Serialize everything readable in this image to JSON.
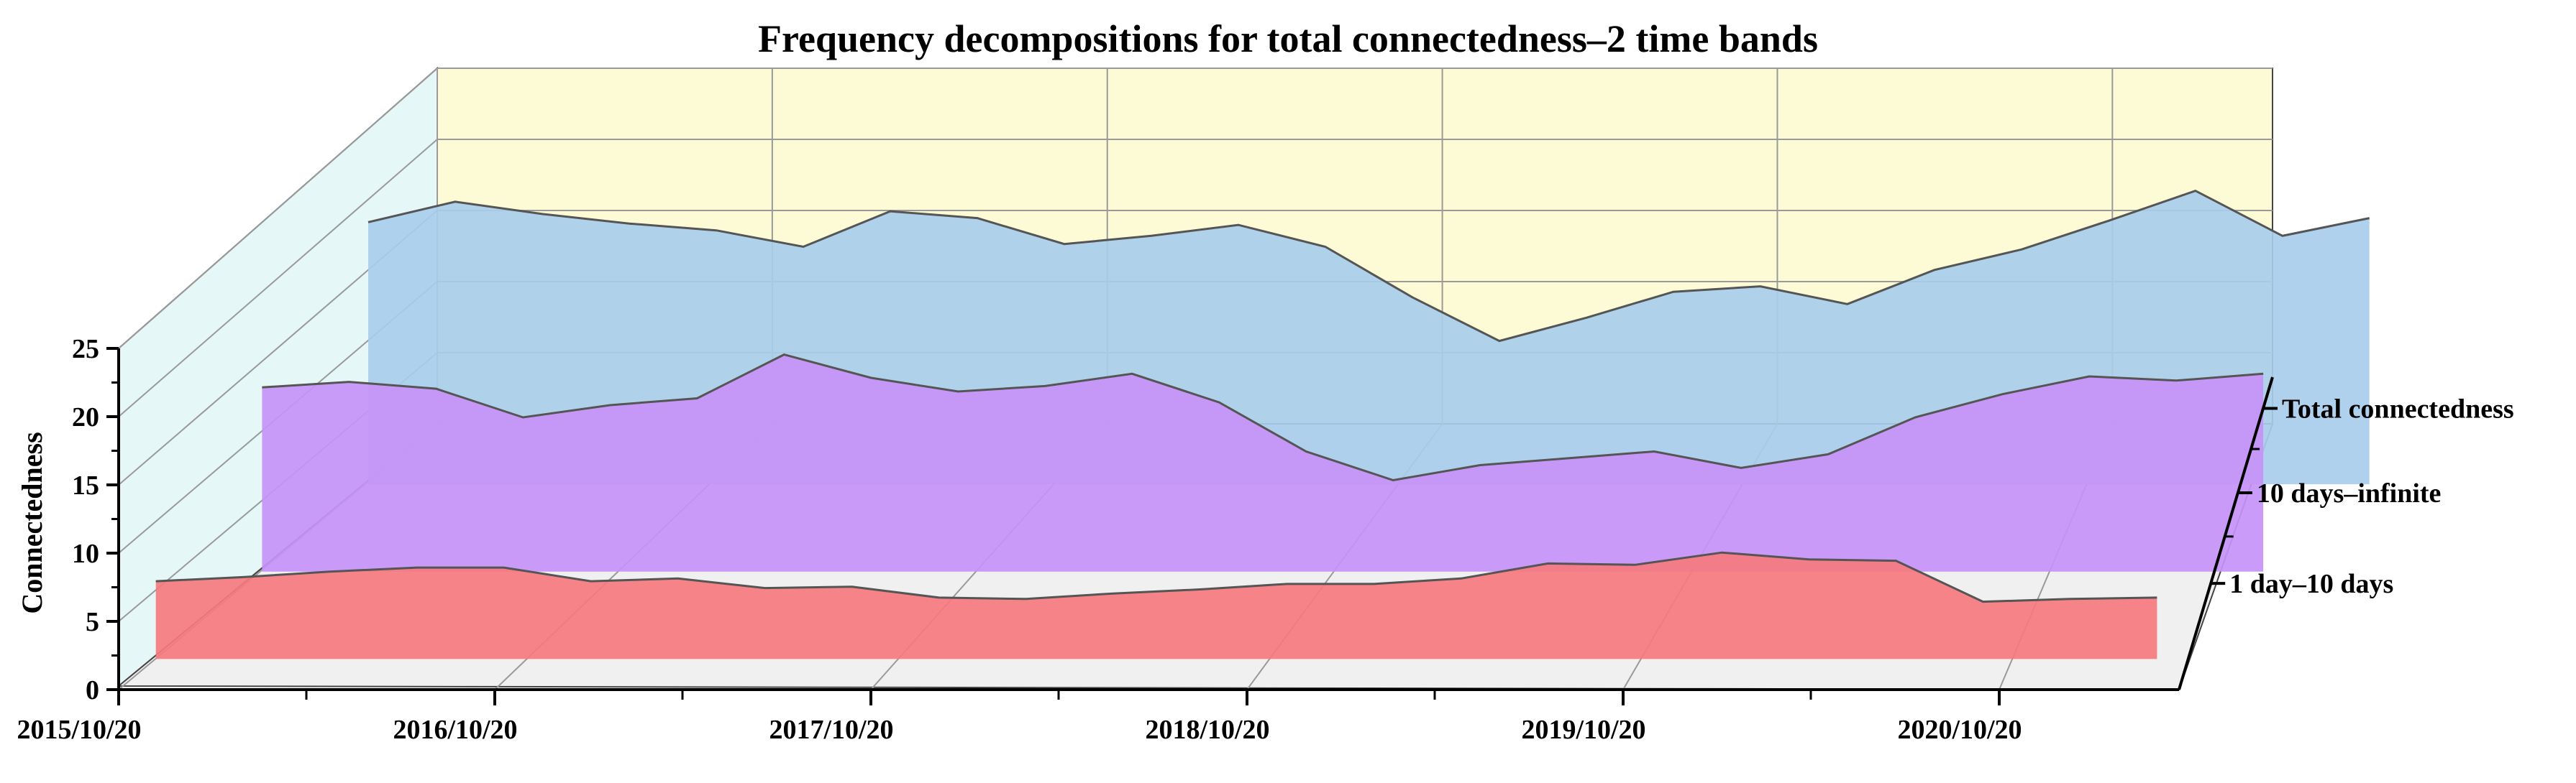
{
  "chart_data": {
    "type": "area",
    "title": "Frequency decompositions for total connectedness–2 time bands",
    "xlabel": "",
    "ylabel": "Connectedness",
    "ylim": [
      0,
      25
    ],
    "yticks": [
      "0",
      "5",
      "10",
      "15",
      "20",
      "25"
    ],
    "x_tick_labels": [
      "2015/10/20",
      "2016/10/20",
      "2017/10/20",
      "2018/10/20",
      "2019/10/20",
      "2020/10/20"
    ],
    "depth_axis_labels": [
      "1 day–10 days",
      "10 days–infinite",
      "Total connectedness"
    ],
    "x": [
      2015.8,
      2016.05,
      2016.3,
      2016.55,
      2016.8,
      2017.05,
      2017.3,
      2017.55,
      2017.8,
      2018.05,
      2018.3,
      2018.55,
      2018.8,
      2019.05,
      2019.3,
      2019.55,
      2019.8,
      2020.05,
      2020.3,
      2020.55,
      2020.8,
      2021.05,
      2021.3,
      2021.55
    ],
    "series": [
      {
        "name": "1 day–10 days",
        "color": "#f57a7e",
        "values": [
          5.7,
          6.0,
          6.4,
          6.7,
          6.7,
          5.7,
          5.9,
          5.2,
          5.3,
          4.5,
          4.4,
          4.8,
          5.1,
          5.5,
          5.5,
          5.9,
          7.0,
          6.9,
          7.8,
          7.3,
          7.2,
          4.2,
          4.4,
          4.5
        ]
      },
      {
        "name": "10 days–infinite",
        "color": "#c792f8",
        "values": [
          13.5,
          13.9,
          13.4,
          11.3,
          12.2,
          12.7,
          15.9,
          14.2,
          13.2,
          13.6,
          14.5,
          12.4,
          8.8,
          6.7,
          7.8,
          8.3,
          8.8,
          7.6,
          8.6,
          11.3,
          13.0,
          14.3,
          14.0,
          14.5
        ]
      },
      {
        "name": "Total connectedness",
        "color": "#a9cdeb",
        "values": [
          19.2,
          20.7,
          19.8,
          19.1,
          18.6,
          17.4,
          20.0,
          19.5,
          17.6,
          18.2,
          19.0,
          17.4,
          13.7,
          10.5,
          12.2,
          14.1,
          14.5,
          13.2,
          15.7,
          17.2,
          19.3,
          21.5,
          18.2,
          19.5
        ]
      }
    ]
  }
}
